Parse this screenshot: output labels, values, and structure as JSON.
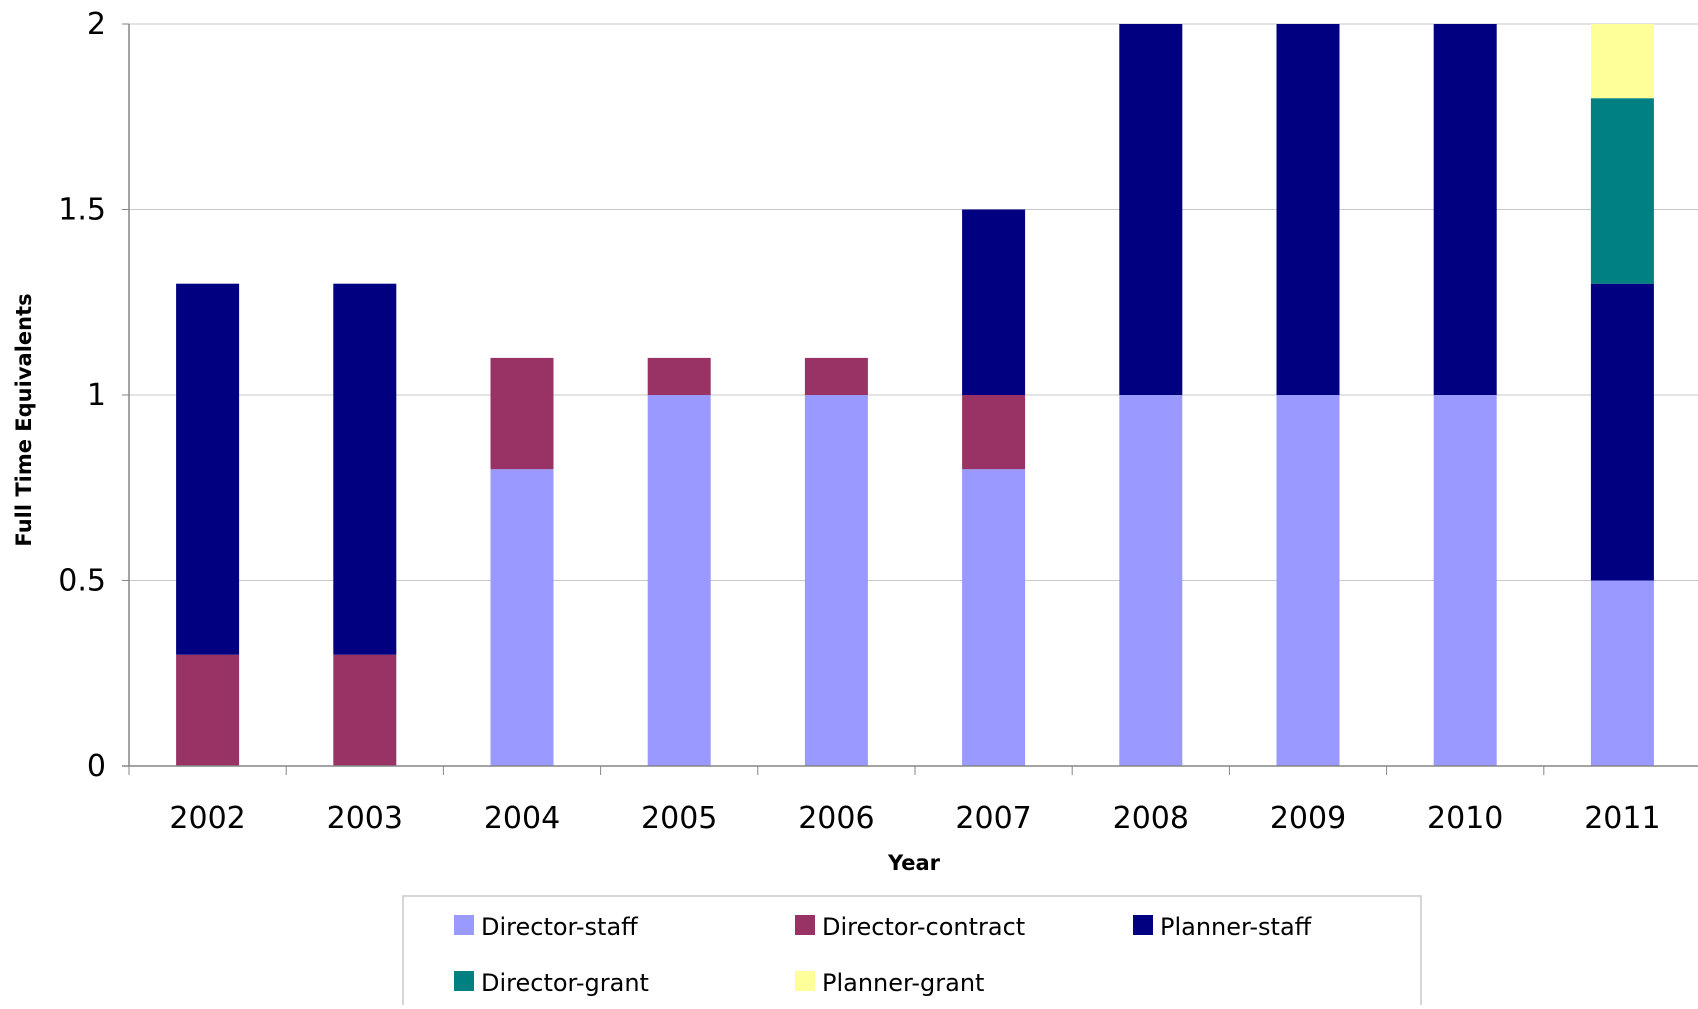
{
  "chart_data": {
    "type": "bar",
    "stacked": true,
    "title": "",
    "xlabel": "Year",
    "ylabel": "Full Time Equivalents",
    "categories": [
      "2002",
      "2003",
      "2004",
      "2005",
      "2006",
      "2007",
      "2008",
      "2009",
      "2010",
      "2011"
    ],
    "ylim": [
      0,
      2
    ],
    "yticks": [
      0,
      0.5,
      1,
      1.5,
      2
    ],
    "ytick_labels": [
      "0",
      "0.5",
      "1",
      "1.5",
      "2"
    ],
    "grid": true,
    "legend_position": "bottom",
    "series": [
      {
        "name": "Director-staff",
        "color": "#9999ff",
        "values": [
          0,
          0,
          0.8,
          1,
          1,
          0.8,
          1,
          1,
          1,
          0.5
        ]
      },
      {
        "name": "Director-contract",
        "color": "#993366",
        "values": [
          0.3,
          0.3,
          0.3,
          0.1,
          0.1,
          0.2,
          0,
          0,
          0,
          0
        ]
      },
      {
        "name": "Planner-staff",
        "color": "#000080",
        "values": [
          1,
          1,
          0,
          0,
          0,
          0.5,
          1,
          1,
          1,
          0.8
        ]
      },
      {
        "name": "Director-grant",
        "color": "#008080",
        "values": [
          0,
          0,
          0,
          0,
          0,
          0,
          0,
          0,
          0,
          0.5
        ]
      },
      {
        "name": "Planner-grant",
        "color": "#ffff99",
        "values": [
          0,
          0,
          0,
          0,
          0,
          0,
          0,
          0,
          0,
          0.2
        ]
      }
    ]
  }
}
